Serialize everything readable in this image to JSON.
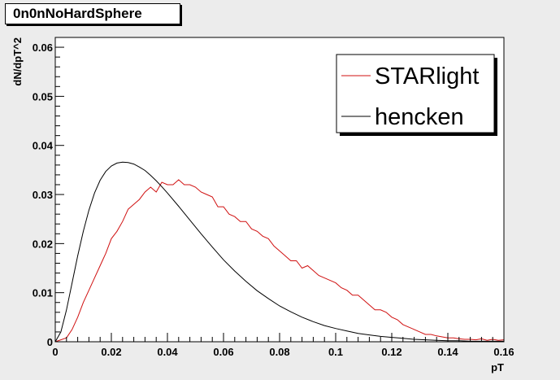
{
  "chart_data": {
    "type": "line",
    "title": "0n0nNoHardSphere",
    "xlabel": "pT",
    "ylabel": "dN/dpT^2",
    "xlim": [
      0,
      0.16
    ],
    "ylim": [
      0,
      0.062
    ],
    "xticks": [
      "0",
      "0.02",
      "0.04",
      "0.06",
      "0.08",
      "0.1",
      "0.12",
      "0.14",
      "0.16"
    ],
    "yticks": [
      "0",
      "0.01",
      "0.02",
      "0.03",
      "0.04",
      "0.05",
      "0.06"
    ],
    "legend_position": "top-right",
    "grid": false,
    "series": [
      {
        "name": "STARlight",
        "color": "#d01010",
        "x": [
          0,
          0.004,
          0.006,
          0.008,
          0.01,
          0.012,
          0.014,
          0.016,
          0.018,
          0.02,
          0.022,
          0.024,
          0.026,
          0.028,
          0.03,
          0.032,
          0.034,
          0.036,
          0.038,
          0.04,
          0.042,
          0.044,
          0.046,
          0.048,
          0.05,
          0.052,
          0.054,
          0.056,
          0.058,
          0.06,
          0.062,
          0.064,
          0.066,
          0.068,
          0.07,
          0.072,
          0.074,
          0.076,
          0.078,
          0.08,
          0.082,
          0.084,
          0.086,
          0.088,
          0.09,
          0.092,
          0.094,
          0.096,
          0.098,
          0.1,
          0.102,
          0.104,
          0.106,
          0.108,
          0.11,
          0.112,
          0.114,
          0.116,
          0.118,
          0.12,
          0.122,
          0.124,
          0.126,
          0.128,
          0.13,
          0.132,
          0.134,
          0.136,
          0.138,
          0.14,
          0.142,
          0.144,
          0.146,
          0.148,
          0.15,
          0.152,
          0.154,
          0.156,
          0.158,
          0.16
        ],
        "y": [
          0,
          0.0008,
          0.0025,
          0.005,
          0.008,
          0.0105,
          0.013,
          0.0155,
          0.018,
          0.021,
          0.0225,
          0.0245,
          0.027,
          0.028,
          0.029,
          0.0305,
          0.0315,
          0.0305,
          0.0325,
          0.032,
          0.032,
          0.033,
          0.032,
          0.032,
          0.0315,
          0.0305,
          0.03,
          0.0295,
          0.0275,
          0.0275,
          0.026,
          0.0255,
          0.0245,
          0.0245,
          0.023,
          0.0225,
          0.0215,
          0.021,
          0.0195,
          0.0185,
          0.0175,
          0.0165,
          0.0165,
          0.015,
          0.0155,
          0.0145,
          0.0135,
          0.013,
          0.0125,
          0.012,
          0.011,
          0.0105,
          0.0095,
          0.0095,
          0.0085,
          0.0075,
          0.0065,
          0.0065,
          0.006,
          0.005,
          0.0045,
          0.0035,
          0.003,
          0.0025,
          0.002,
          0.0015,
          0.0015,
          0.0012,
          0.001,
          0.0008,
          0.0008,
          0.0006,
          0.0005,
          0.0005,
          0.0004,
          0.0006,
          0.0003,
          0.0005,
          0.0003,
          0.0004
        ]
      },
      {
        "name": "hencken",
        "color": "#000000",
        "x": [
          0,
          0.002,
          0.004,
          0.006,
          0.008,
          0.01,
          0.012,
          0.014,
          0.016,
          0.018,
          0.02,
          0.022,
          0.024,
          0.026,
          0.028,
          0.03,
          0.032,
          0.034,
          0.036,
          0.038,
          0.04,
          0.044,
          0.048,
          0.052,
          0.056,
          0.06,
          0.064,
          0.068,
          0.072,
          0.076,
          0.08,
          0.084,
          0.088,
          0.092,
          0.096,
          0.1,
          0.104,
          0.108,
          0.112,
          0.116,
          0.12,
          0.124,
          0.128,
          0.132,
          0.136,
          0.14,
          0.144,
          0.148,
          0.152,
          0.156,
          0.16
        ],
        "y": [
          0,
          0.002,
          0.0065,
          0.012,
          0.0175,
          0.0225,
          0.0268,
          0.0303,
          0.0329,
          0.0347,
          0.0358,
          0.0364,
          0.0366,
          0.0365,
          0.0362,
          0.0356,
          0.0349,
          0.0339,
          0.0328,
          0.0316,
          0.0303,
          0.0276,
          0.0248,
          0.022,
          0.0193,
          0.0167,
          0.0144,
          0.0123,
          0.0104,
          0.0088,
          0.0073,
          0.0061,
          0.005,
          0.0041,
          0.0033,
          0.0027,
          0.0022,
          0.0017,
          0.0014,
          0.0011,
          0.0009,
          0.0007,
          0.0005,
          0.0004,
          0.0003,
          0.0002,
          0.0002,
          0.0001,
          0.0001,
          0.0001,
          0.0001
        ]
      }
    ]
  }
}
